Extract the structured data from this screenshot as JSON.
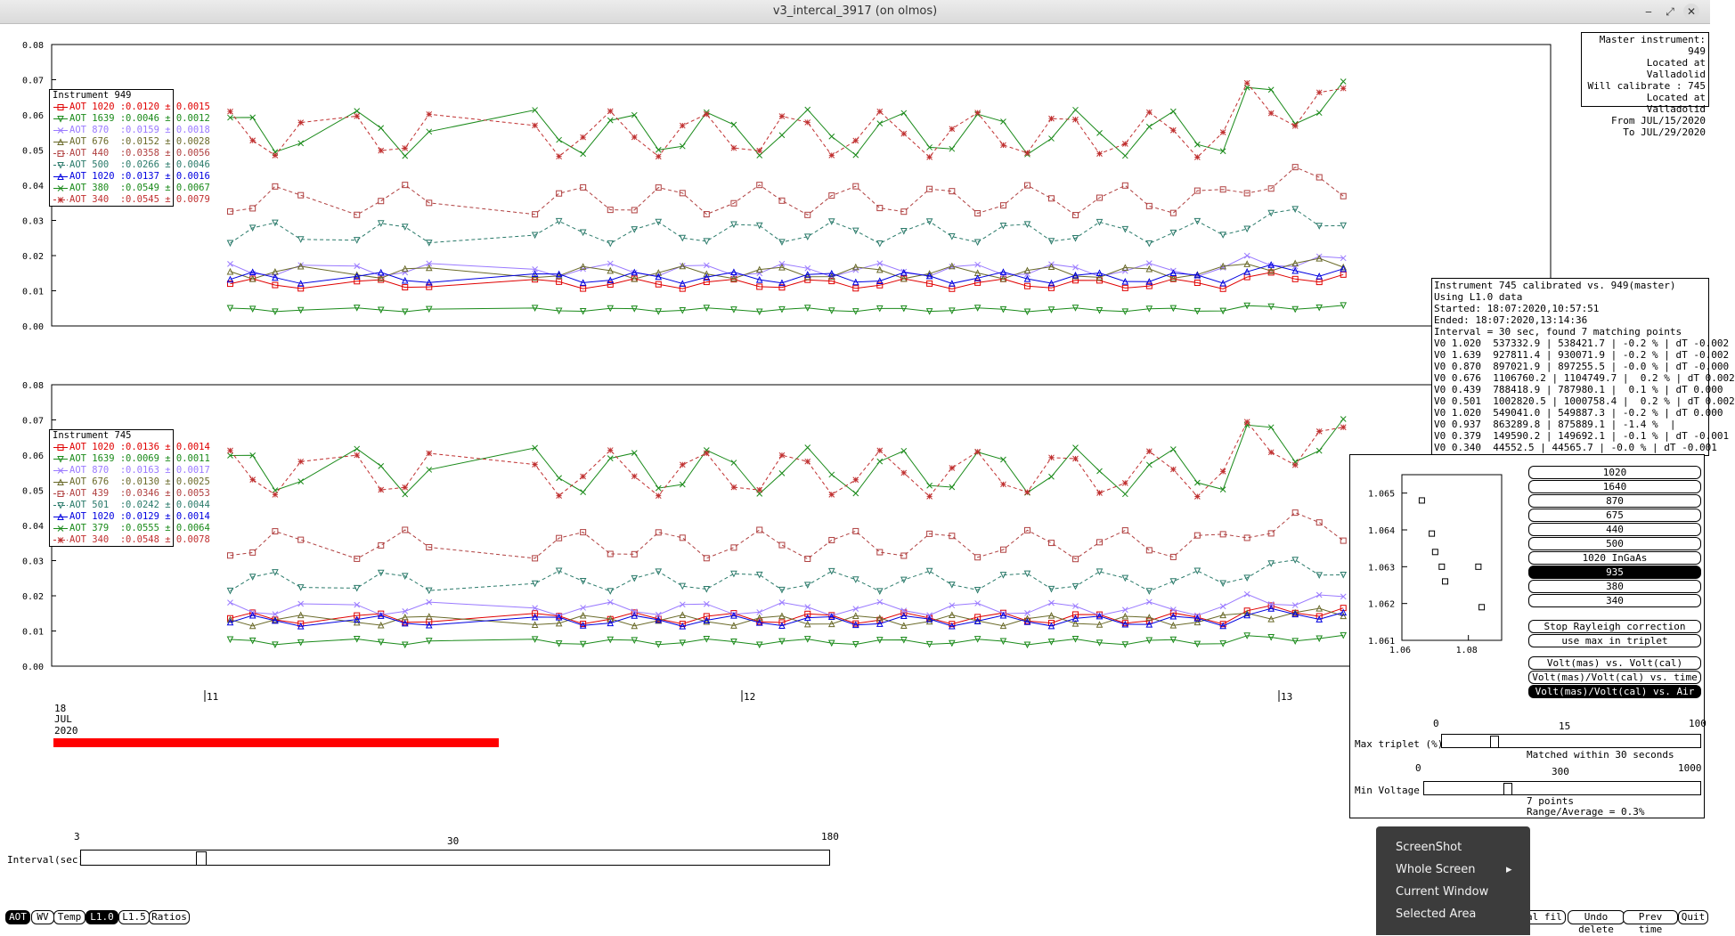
{
  "window": {
    "title": "v3_intercal_3917 (on olmos)"
  },
  "top_chart": {
    "y_ticks": [
      "0.08",
      "0.07",
      "0.06",
      "0.05",
      "0.04",
      "0.03",
      "0.02",
      "0.01",
      "0.00"
    ],
    "legend_title": "Instrument 949",
    "legend": [
      {
        "label": "AOT 1020 :",
        "value": "0.0120 ± 0.0015",
        "color": "#e00000",
        "marker": "square",
        "dash": false
      },
      {
        "label": "AOT 1639 :",
        "value": "0.0046 ± 0.0012",
        "color": "#1a8a1a",
        "marker": "tri-down",
        "dash": false
      },
      {
        "label": "AOT 870  :",
        "value": "0.0159 ± 0.0018",
        "color": "#9a7aff",
        "marker": "x",
        "dash": false
      },
      {
        "label": "AOT 676  :",
        "value": "0.0152 ± 0.0028",
        "color": "#6a6a2a",
        "marker": "tri-up",
        "dash": false
      },
      {
        "label": "AOT 440  :",
        "value": "0.0358 ± 0.0056",
        "color": "#b04040",
        "marker": "square",
        "dash": true
      },
      {
        "label": "AOT 500  :",
        "value": "0.0266 ± 0.0046",
        "color": "#2a7a6a",
        "marker": "tri-down",
        "dash": true
      },
      {
        "label": "AOT 1020 :",
        "value": "0.0137 ± 0.0016",
        "color": "#0000e0",
        "marker": "tri-up",
        "dash": false
      },
      {
        "label": "AOT 380  :",
        "value": "0.0549 ± 0.0067",
        "color": "#1a8a1a",
        "marker": "x",
        "dash": false
      },
      {
        "label": "AOT 340  :",
        "value": "0.0545 ± 0.0079",
        "color": "#c03030",
        "marker": "star",
        "dash": true
      }
    ]
  },
  "bottom_chart": {
    "y_ticks": [
      "0.08",
      "0.07",
      "0.06",
      "0.05",
      "0.04",
      "0.03",
      "0.02",
      "0.01",
      "0.00"
    ],
    "legend_title": "Instrument 745",
    "legend": [
      {
        "label": "AOT 1020 :",
        "value": "0.0136 ± 0.0014",
        "color": "#e00000",
        "marker": "square",
        "dash": false
      },
      {
        "label": "AOT 1639 :",
        "value": "0.0069 ± 0.0011",
        "color": "#1a8a1a",
        "marker": "tri-down",
        "dash": false
      },
      {
        "label": "AOT 870  :",
        "value": "0.0163 ± 0.0017",
        "color": "#9a7aff",
        "marker": "x",
        "dash": false
      },
      {
        "label": "AOT 676  :",
        "value": "0.0130 ± 0.0025",
        "color": "#6a6a2a",
        "marker": "tri-up",
        "dash": false
      },
      {
        "label": "AOT 439  :",
        "value": "0.0346 ± 0.0053",
        "color": "#b04040",
        "marker": "square",
        "dash": true
      },
      {
        "label": "AOT 501  :",
        "value": "0.0242 ± 0.0044",
        "color": "#2a7a6a",
        "marker": "tri-down",
        "dash": true
      },
      {
        "label": "AOT 1020 :",
        "value": "0.0129 ± 0.0014",
        "color": "#0000e0",
        "marker": "tri-up",
        "dash": false
      },
      {
        "label": "AOT 379  :",
        "value": "0.0555 ± 0.0064",
        "color": "#1a8a1a",
        "marker": "x",
        "dash": false
      },
      {
        "label": "AOT 340  :",
        "value": "0.0548 ± 0.0078",
        "color": "#c03030",
        "marker": "star",
        "dash": true
      }
    ]
  },
  "time_axis": {
    "day_ticks": [
      "11",
      "12",
      "13"
    ],
    "date_label": [
      "18",
      "JUL",
      "2020"
    ],
    "progress_fraction": 0.52,
    "progress_color": "#ff0000"
  },
  "master_info": [
    "Master instrument: 949",
    "Located at Valladolid",
    "Will calibrate : 745",
    "Located at Valladolid",
    "From JUL/15/2020",
    "To JUL/29/2020"
  ],
  "calib_info": [
    "Instrument 745 calibrated vs. 949(master)",
    "Using L1.0 data",
    "Started: 18:07:2020,10:57:51",
    "Ended: 18:07:2020,13:14:36",
    "Interval = 30 sec, found 7 matching points",
    "V0 1.020  537332.9 | 538421.7 | -0.2 % | dT -0.002",
    "V0 1.639  927811.4 | 930071.9 | -0.2 % | dT -0.002",
    "V0 0.870  897021.9 | 897255.5 | -0.0 % | dT -0.000",
    "V0 0.676  1106760.2 | 1104749.7 |  0.2 % | dT 0.002",
    "V0 0.439  788418.9 | 787980.1 |  0.1 % | dT 0.000",
    "V0 0.501  1002820.5 | 1000758.4 |  0.2 % | dT 0.002",
    "V0 1.020  549041.0 | 549887.3 | -0.2 % | dT 0.000",
    "V0 0.937  863289.8 | 875889.1 | -1.4 %  |",
    "V0 0.379  149590.2 | 149692.1 | -0.1 % | dT -0.001",
    "V0 0.340  44552.5 | 44565.7 | -0.0 % | dT -0.001"
  ],
  "scatter": {
    "chart_data": {
      "type": "scatter",
      "x": [
        1.066,
        1.069,
        1.07,
        1.072,
        1.073,
        1.083,
        1.084
      ],
      "y": [
        1.0648,
        1.0639,
        1.0634,
        1.063,
        1.0626,
        1.063,
        1.0619
      ],
      "xlim": [
        1.06,
        1.09
      ],
      "ylim": [
        1.061,
        1.0655
      ],
      "x_ticks": [
        "1.06",
        "1.08"
      ],
      "y_ticks": [
        "1.065",
        "1.064",
        "1.063",
        "1.062",
        "1.061"
      ]
    }
  },
  "wavelength_buttons": [
    {
      "label": "1020",
      "selected": false
    },
    {
      "label": "1640",
      "selected": false
    },
    {
      "label": "870",
      "selected": false
    },
    {
      "label": "675",
      "selected": false
    },
    {
      "label": "440",
      "selected": false
    },
    {
      "label": "500",
      "selected": false
    },
    {
      "label": "1020 InGaAs",
      "selected": false
    },
    {
      "label": "935",
      "selected": true
    },
    {
      "label": "380",
      "selected": false
    },
    {
      "label": "340",
      "selected": false
    }
  ],
  "option_buttons": {
    "rayleigh": "Stop Rayleigh correction",
    "use_max": "use max in triplet"
  },
  "plot_mode_buttons": [
    {
      "label": "Volt(mas) vs. Volt(cal)",
      "selected": false
    },
    {
      "label": "Volt(mas)/Volt(cal) vs. time",
      "selected": false
    },
    {
      "label": "Volt(mas)/Volt(cal) vs. Air Mass",
      "selected": true
    }
  ],
  "max_triplet": {
    "label": "Max triplet (%)",
    "min": "0",
    "mid": "15",
    "max": "100",
    "value_fraction": 0.2,
    "status": "Matched within 30 seconds"
  },
  "min_voltage": {
    "label": "Min Voltage",
    "min": "0",
    "mid": "300",
    "max": "1000",
    "value_fraction": 0.3,
    "status1": "7 points",
    "status2": "Range/Average = 0.3%"
  },
  "interval": {
    "label": "Interval(sec)",
    "min": "3",
    "mid": "30",
    "max": "180",
    "value_fraction": 0.16
  },
  "bottom_buttons": [
    {
      "label": "AOT",
      "selected": true
    },
    {
      "label": "WV",
      "selected": false
    },
    {
      "label": "Temp",
      "selected": false
    },
    {
      "label": "L1.0",
      "selected": true
    },
    {
      "label": "L1.5",
      "selected": false
    },
    {
      "label": "Ratios",
      "selected": false
    }
  ],
  "right_buttons": [
    {
      "label": "Local fil",
      "selected": false
    },
    {
      "label": "Undo delete",
      "selected": false
    },
    {
      "label": "Prev time",
      "selected": false
    },
    {
      "label": "Quit",
      "selected": false
    }
  ],
  "context_menu": {
    "items": [
      "ScreenShot",
      "Whole Screen",
      "Current Window",
      "Selected Area"
    ],
    "submenu_arrow": "▸"
  }
}
